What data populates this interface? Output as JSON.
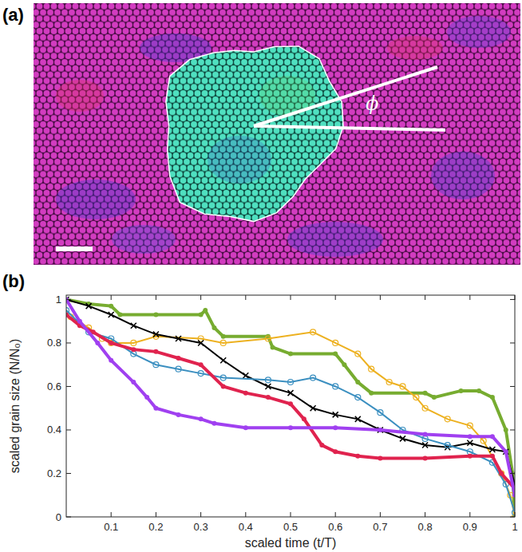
{
  "image_panel": {
    "label": "(a)",
    "angle_label": "ϕ"
  },
  "chart_data": {
    "type": "line",
    "title": "(b)",
    "x_label": "scaled time (t/T)",
    "y_label": "scaled grain size (N/N₀)",
    "xlim": [
      0,
      1
    ],
    "ylim": [
      0,
      1.02
    ],
    "xticks": [
      0.1,
      0.2,
      0.3,
      0.4,
      0.5,
      0.6,
      0.7,
      0.8,
      0.9,
      1
    ],
    "yticks": [
      0,
      0.2,
      0.4,
      0.6,
      0.8,
      1
    ],
    "grid": false,
    "series": [
      {
        "color": "#77ac30",
        "marker": "filled-circle",
        "x": [
          0,
          0.05,
          0.1,
          0.12,
          0.2,
          0.3,
          0.31,
          0.33,
          0.35,
          0.45,
          0.46,
          0.5,
          0.6,
          0.62,
          0.65,
          0.68,
          0.8,
          0.82,
          0.88,
          0.92,
          0.95,
          0.98,
          0.995,
          1
        ],
        "values": [
          1,
          0.98,
          0.97,
          0.93,
          0.93,
          0.93,
          0.95,
          0.87,
          0.83,
          0.83,
          0.78,
          0.75,
          0.75,
          0.7,
          0.62,
          0.57,
          0.57,
          0.55,
          0.58,
          0.58,
          0.55,
          0.4,
          0.2,
          0
        ]
      },
      {
        "color": "#edb120",
        "marker": "open-circle",
        "x": [
          0.01,
          0.05,
          0.08,
          0.1,
          0.15,
          0.2,
          0.3,
          0.35,
          0.45,
          0.55,
          0.6,
          0.65,
          0.68,
          0.72,
          0.75,
          0.78,
          0.8,
          0.85,
          0.9,
          0.93,
          0.97,
          0.99,
          1
        ],
        "values": [
          0.92,
          0.87,
          0.82,
          0.8,
          0.8,
          0.83,
          0.82,
          0.8,
          0.82,
          0.85,
          0.8,
          0.75,
          0.68,
          0.62,
          0.6,
          0.55,
          0.5,
          0.45,
          0.42,
          0.35,
          0.2,
          0.1,
          0
        ]
      },
      {
        "color": "#000000",
        "marker": "x",
        "x": [
          0,
          0.05,
          0.1,
          0.15,
          0.2,
          0.25,
          0.3,
          0.35,
          0.4,
          0.45,
          0.5,
          0.55,
          0.6,
          0.65,
          0.7,
          0.75,
          0.8,
          0.85,
          0.9,
          0.95,
          0.98,
          1
        ],
        "values": [
          1,
          0.97,
          0.93,
          0.88,
          0.84,
          0.82,
          0.8,
          0.72,
          0.65,
          0.6,
          0.57,
          0.5,
          0.47,
          0.45,
          0.4,
          0.36,
          0.33,
          0.32,
          0.34,
          0.31,
          0.3,
          0.15
        ]
      },
      {
        "color": "#3b8fc0",
        "marker": "open-circle",
        "x": [
          0,
          0.05,
          0.1,
          0.15,
          0.2,
          0.25,
          0.3,
          0.35,
          0.45,
          0.5,
          0.55,
          0.6,
          0.65,
          0.7,
          0.75,
          0.8,
          0.85,
          0.9,
          0.95,
          0.98,
          1
        ],
        "values": [
          0.95,
          0.85,
          0.82,
          0.75,
          0.7,
          0.68,
          0.66,
          0.64,
          0.63,
          0.62,
          0.64,
          0.6,
          0.55,
          0.48,
          0.4,
          0.36,
          0.33,
          0.3,
          0.25,
          0.15,
          0.02
        ]
      },
      {
        "color": "#e0234e",
        "marker": "filled-circle",
        "x": [
          0,
          0.03,
          0.06,
          0.1,
          0.15,
          0.2,
          0.25,
          0.3,
          0.35,
          0.4,
          0.45,
          0.5,
          0.53,
          0.57,
          0.6,
          0.65,
          0.7,
          0.8,
          0.9,
          0.95,
          0.97,
          1
        ],
        "values": [
          0.93,
          0.88,
          0.85,
          0.8,
          0.77,
          0.76,
          0.73,
          0.7,
          0.6,
          0.57,
          0.55,
          0.52,
          0.45,
          0.33,
          0.3,
          0.28,
          0.27,
          0.27,
          0.28,
          0.28,
          0.2,
          0.13
        ]
      },
      {
        "color": "#a040f0",
        "marker": "filled-circle",
        "x": [
          0,
          0.03,
          0.07,
          0.1,
          0.15,
          0.18,
          0.2,
          0.25,
          0.3,
          0.33,
          0.4,
          0.5,
          0.6,
          0.7,
          0.8,
          0.9,
          0.95,
          0.98,
          1
        ],
        "values": [
          1,
          0.9,
          0.8,
          0.72,
          0.62,
          0.55,
          0.5,
          0.47,
          0.45,
          0.43,
          0.41,
          0.41,
          0.41,
          0.4,
          0.38,
          0.37,
          0.37,
          0.3,
          0.1
        ]
      }
    ]
  }
}
